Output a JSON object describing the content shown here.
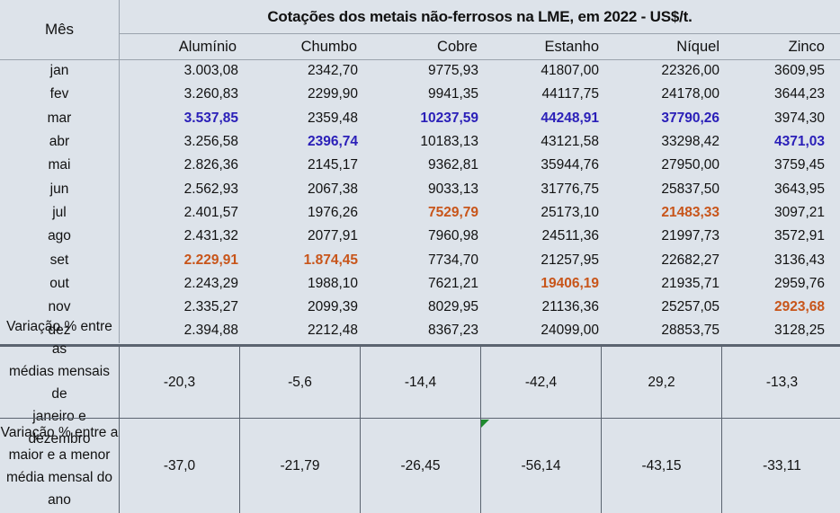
{
  "table": {
    "month_header": "Mês",
    "title": "Cotações dos metais não-ferrosos na LME, em 2022 - US$/t.",
    "columns": [
      "Alumínio",
      "Chumbo",
      "Cobre",
      "Estanho",
      "Níquel",
      "Zinco"
    ],
    "rows": [
      {
        "month": "jan",
        "values": [
          "3.003,08",
          "2342,70",
          "9775,93",
          "41807,00",
          "22326,00",
          "3609,95"
        ]
      },
      {
        "month": "fev",
        "values": [
          "3.260,83",
          "2299,90",
          "9941,35",
          "44117,75",
          "24178,00",
          "3644,23"
        ]
      },
      {
        "month": "mar",
        "values": [
          "3.537,85",
          "2359,48",
          "10237,59",
          "44248,91",
          "37790,26",
          "3974,30"
        ]
      },
      {
        "month": "abr",
        "values": [
          "3.256,58",
          "2396,74",
          "10183,13",
          "43121,58",
          "33298,42",
          "4371,03"
        ]
      },
      {
        "month": "mai",
        "values": [
          "2.826,36",
          "2145,17",
          "9362,81",
          "35944,76",
          "27950,00",
          "3759,45"
        ]
      },
      {
        "month": "jun",
        "values": [
          "2.562,93",
          "2067,38",
          "9033,13",
          "31776,75",
          "25837,50",
          "3643,95"
        ]
      },
      {
        "month": "jul",
        "values": [
          "2.401,57",
          "1976,26",
          "7529,79",
          "25173,10",
          "21483,33",
          "3097,21"
        ]
      },
      {
        "month": "ago",
        "values": [
          "2.431,32",
          "2077,91",
          "7960,98",
          "24511,36",
          "21997,73",
          "3572,91"
        ]
      },
      {
        "month": "set",
        "values": [
          "2.229,91",
          "1.874,45",
          "7734,70",
          "21257,95",
          "22682,27",
          "3136,43"
        ]
      },
      {
        "month": "out",
        "values": [
          "2.243,29",
          "1988,10",
          "7621,21",
          "19406,19",
          "21935,71",
          "2959,76"
        ]
      },
      {
        "month": "nov",
        "values": [
          "2.335,27",
          "2099,39",
          "8029,95",
          "21136,36",
          "25257,05",
          "2923,68"
        ]
      },
      {
        "month": "dez",
        "values": [
          "2.394,88",
          "2212,48",
          "8367,23",
          "24099,00",
          "28853,75",
          "3128,25"
        ]
      }
    ],
    "highlight_max_color": "#2a1fb8",
    "highlight_min_color": "#c8551a",
    "highlights": {
      "max": [
        [
          2,
          0
        ],
        [
          3,
          1
        ],
        [
          2,
          2
        ],
        [
          2,
          3
        ],
        [
          2,
          4
        ],
        [
          3,
          5
        ]
      ],
      "min": [
        [
          8,
          0
        ],
        [
          8,
          1
        ],
        [
          6,
          2
        ],
        [
          9,
          3
        ],
        [
          6,
          4
        ],
        [
          10,
          5
        ]
      ]
    },
    "summary": [
      {
        "label_lines": [
          "Variação % entre as",
          "médias mensais de",
          "janeiro e dezembro"
        ],
        "values": [
          "-20,3",
          "-5,6",
          "-14,4",
          "-42,4",
          "29,2",
          "-13,3"
        ]
      },
      {
        "label_lines": [
          "Variação % entre a",
          "maior e a menor",
          "média mensal do",
          "ano"
        ],
        "values": [
          "-37,0",
          "-21,79",
          "-26,45",
          "-56,14",
          "-43,15",
          "-33,11"
        ]
      }
    ]
  }
}
